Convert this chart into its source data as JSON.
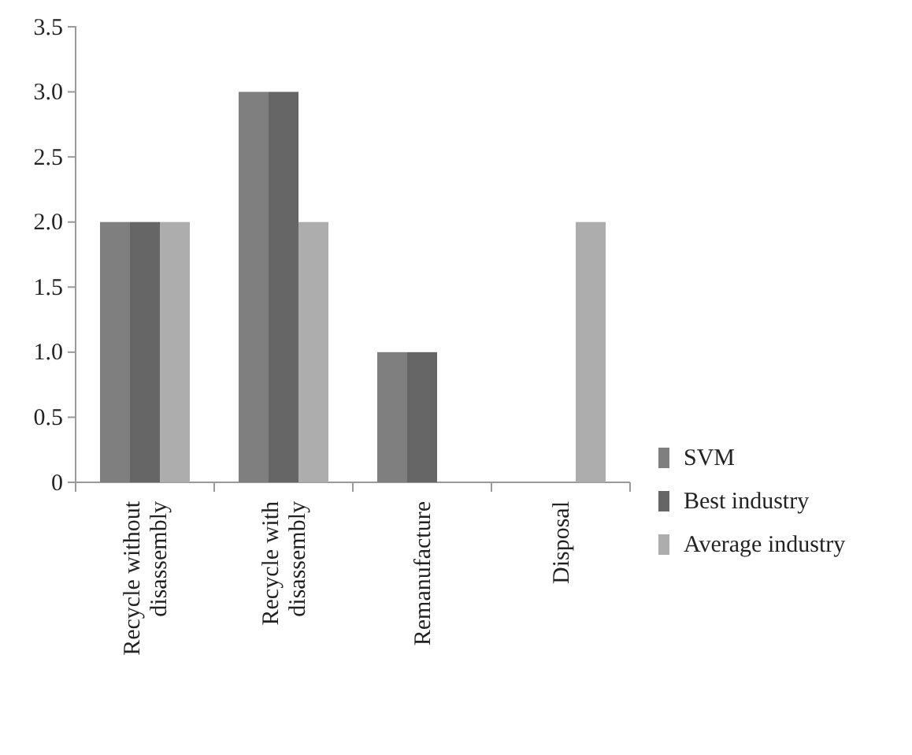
{
  "chart_data": {
    "type": "bar",
    "categories": [
      "Recycle without disassembly",
      "Recycle with disassembly",
      "Remanufacture",
      "Disposal"
    ],
    "series": [
      {
        "name": "SVM",
        "color": "#7f7f7f",
        "values": [
          2,
          3,
          1,
          0
        ]
      },
      {
        "name": "Best industry",
        "color": "#666666",
        "values": [
          2,
          3,
          1,
          0
        ]
      },
      {
        "name": "Average industry",
        "color": "#adadad",
        "values": [
          2,
          2,
          null,
          2
        ]
      }
    ],
    "ylim": [
      0,
      3.5
    ],
    "yticks": [
      {
        "value": 0,
        "label": "0"
      },
      {
        "value": 0.5,
        "label": "0.5"
      },
      {
        "value": 1,
        "label": "1.0"
      },
      {
        "value": 1.5,
        "label": "1.5"
      },
      {
        "value": 2,
        "label": "2.0"
      },
      {
        "value": 2.5,
        "label": "2.5"
      },
      {
        "value": 3,
        "label": "3.0"
      },
      {
        "value": 3.5,
        "label": "3.5"
      }
    ],
    "grid": false,
    "legend": "right"
  }
}
